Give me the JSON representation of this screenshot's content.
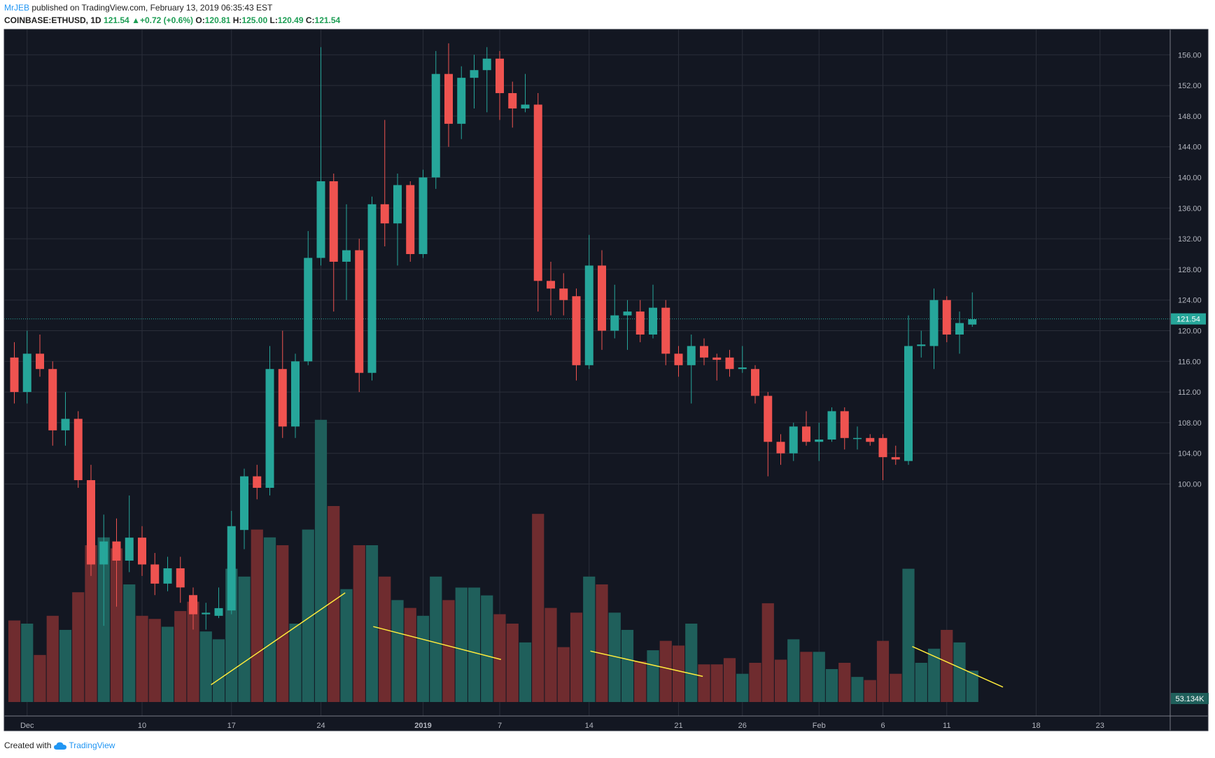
{
  "header": {
    "author": "MrJEB",
    "published_text": "published on TradingView.com, February 13, 2019 06:35:43 EST",
    "symbol": "COINBASE:ETHUSD",
    "interval": "1D",
    "last": "121.54",
    "change": "+0.72 (+0.6%)",
    "o_label": "O:",
    "o_val": "120.81",
    "h_label": "H:",
    "h_val": "125.00",
    "l_label": "L:",
    "l_val": "120.49",
    "c_label": "C:",
    "c_val": "121.54"
  },
  "footer": {
    "created_with": "Created with",
    "brand": "TradingView"
  },
  "colors": {
    "up": "#26a69a",
    "down": "#ef5350",
    "up_volume": "#1f5f5b",
    "down_volume": "#6f2c2f",
    "background": "#131722",
    "grid": "#2a2e39",
    "trendline": "#ffeb3b"
  },
  "chart_data": {
    "type": "candlestick",
    "price_axis": {
      "min": 100,
      "max": 156,
      "ticks": [
        100,
        104,
        108,
        112,
        116,
        120,
        124,
        128,
        132,
        136,
        140,
        144,
        148,
        152,
        156
      ]
    },
    "price_tick_labels": [
      "100.00",
      "104.00",
      "108.00",
      "112.00",
      "116.00",
      "120.00",
      "124.00",
      "128.00",
      "132.00",
      "136.00",
      "140.00",
      "144.00",
      "148.00",
      "152.00",
      "156.00"
    ],
    "current_price_label": "121.54",
    "current_price": 121.54,
    "volume_label": "53.134K",
    "x_labels": [
      {
        "day": 1,
        "text": "Dec"
      },
      {
        "day": 10,
        "text": "10"
      },
      {
        "day": 17,
        "text": "17"
      },
      {
        "day": 24,
        "text": "24"
      },
      {
        "day": 32,
        "text": "2019"
      },
      {
        "day": 38,
        "text": "7"
      },
      {
        "day": 45,
        "text": "14"
      },
      {
        "day": 52,
        "text": "21"
      },
      {
        "day": 57,
        "text": "26"
      },
      {
        "day": 63,
        "text": "Feb"
      },
      {
        "day": 68,
        "text": "6"
      },
      {
        "day": 73,
        "text": "11"
      },
      {
        "day": 80,
        "text": "18"
      },
      {
        "day": 85,
        "text": "23"
      }
    ],
    "candles": [
      {
        "d": 0,
        "o": 116.5,
        "h": 118.5,
        "l": 110.5,
        "c": 112.0,
        "v": 0.52
      },
      {
        "d": 1,
        "o": 112.0,
        "h": 120.0,
        "l": 110.5,
        "c": 117.0,
        "v": 0.5
      },
      {
        "d": 2,
        "o": 117.0,
        "h": 119.5,
        "l": 114.0,
        "c": 115.0,
        "v": 0.3
      },
      {
        "d": 3,
        "o": 115.0,
        "h": 116.0,
        "l": 105.0,
        "c": 107.0,
        "v": 0.55
      },
      {
        "d": 4,
        "o": 107.0,
        "h": 112.0,
        "l": 105.0,
        "c": 108.5,
        "v": 0.46
      },
      {
        "d": 5,
        "o": 108.5,
        "h": 109.5,
        "l": 99.5,
        "c": 100.5,
        "v": 0.7
      },
      {
        "d": 6,
        "o": 100.5,
        "h": 102.5,
        "l": 88.0,
        "c": 89.5,
        "v": 1.0
      },
      {
        "d": 7,
        "o": 89.5,
        "h": 96.0,
        "l": 81.5,
        "c": 92.5,
        "v": 1.05
      },
      {
        "d": 8,
        "o": 92.5,
        "h": 95.5,
        "l": 84.0,
        "c": 90.0,
        "v": 0.98
      },
      {
        "d": 9,
        "o": 90.0,
        "h": 98.5,
        "l": 88.5,
        "c": 93.0,
        "v": 0.75
      },
      {
        "d": 10,
        "o": 93.0,
        "h": 94.5,
        "l": 88.0,
        "c": 89.5,
        "v": 0.55
      },
      {
        "d": 11,
        "o": 89.5,
        "h": 91.0,
        "l": 85.5,
        "c": 87.0,
        "v": 0.53
      },
      {
        "d": 12,
        "o": 87.0,
        "h": 90.5,
        "l": 86.0,
        "c": 89.0,
        "v": 0.48
      },
      {
        "d": 13,
        "o": 89.0,
        "h": 90.5,
        "l": 84.5,
        "c": 86.5,
        "v": 0.58
      },
      {
        "d": 14,
        "o": 85.5,
        "h": 86.5,
        "l": 81.0,
        "c": 83.0,
        "v": 0.64
      },
      {
        "d": 15,
        "o": 83.0,
        "h": 84.5,
        "l": 81.0,
        "c": 83.2,
        "v": 0.45
      },
      {
        "d": 16,
        "o": 82.8,
        "h": 86.5,
        "l": 82.5,
        "c": 83.8,
        "v": 0.4
      },
      {
        "d": 17,
        "o": 83.5,
        "h": 96.5,
        "l": 83.0,
        "c": 94.5,
        "v": 0.85
      },
      {
        "d": 18,
        "o": 94.0,
        "h": 102.0,
        "l": 91.5,
        "c": 101.0,
        "v": 0.8
      },
      {
        "d": 19,
        "o": 101.0,
        "h": 102.5,
        "l": 98.0,
        "c": 99.5,
        "v": 1.1
      },
      {
        "d": 20,
        "o": 99.5,
        "h": 118.0,
        "l": 98.5,
        "c": 115.0,
        "v": 1.05
      },
      {
        "d": 21,
        "o": 115.0,
        "h": 120.0,
        "l": 106.0,
        "c": 107.5,
        "v": 1.0
      },
      {
        "d": 22,
        "o": 107.5,
        "h": 117.0,
        "l": 106.0,
        "c": 116.0,
        "v": 0.5
      },
      {
        "d": 23,
        "o": 116.0,
        "h": 133.0,
        "l": 115.5,
        "c": 129.5,
        "v": 1.1
      },
      {
        "d": 24,
        "o": 129.5,
        "h": 157.0,
        "l": 128.5,
        "c": 139.5,
        "v": 1.8
      },
      {
        "d": 25,
        "o": 139.5,
        "h": 140.5,
        "l": 122.5,
        "c": 129.0,
        "v": 1.25
      },
      {
        "d": 26,
        "o": 129.0,
        "h": 136.5,
        "l": 124.0,
        "c": 130.5,
        "v": 0.72
      },
      {
        "d": 27,
        "o": 130.5,
        "h": 132.0,
        "l": 112.0,
        "c": 114.5,
        "v": 1.0
      },
      {
        "d": 28,
        "o": 114.5,
        "h": 137.5,
        "l": 113.5,
        "c": 136.5,
        "v": 1.0
      },
      {
        "d": 29,
        "o": 136.5,
        "h": 147.5,
        "l": 131.0,
        "c": 134.0,
        "v": 0.8
      },
      {
        "d": 30,
        "o": 134.0,
        "h": 140.5,
        "l": 128.5,
        "c": 139.0,
        "v": 0.65
      },
      {
        "d": 31,
        "o": 139.0,
        "h": 139.5,
        "l": 129.0,
        "c": 130.0,
        "v": 0.6
      },
      {
        "d": 32,
        "o": 130.0,
        "h": 141.0,
        "l": 129.5,
        "c": 140.0,
        "v": 0.55
      },
      {
        "d": 33,
        "o": 140.0,
        "h": 156.5,
        "l": 138.5,
        "c": 153.5,
        "v": 0.8
      },
      {
        "d": 34,
        "o": 153.5,
        "h": 157.5,
        "l": 144.0,
        "c": 147.0,
        "v": 0.65
      },
      {
        "d": 35,
        "o": 147.0,
        "h": 154.5,
        "l": 145.0,
        "c": 153.0,
        "v": 0.73
      },
      {
        "d": 36,
        "o": 153.0,
        "h": 156.0,
        "l": 149.0,
        "c": 154.0,
        "v": 0.73
      },
      {
        "d": 37,
        "o": 154.0,
        "h": 157.0,
        "l": 148.5,
        "c": 155.5,
        "v": 0.68
      },
      {
        "d": 38,
        "o": 155.5,
        "h": 156.5,
        "l": 147.5,
        "c": 151.0,
        "v": 0.56
      },
      {
        "d": 39,
        "o": 151.0,
        "h": 152.5,
        "l": 146.5,
        "c": 149.0,
        "v": 0.5
      },
      {
        "d": 40,
        "o": 149.0,
        "h": 153.5,
        "l": 148.5,
        "c": 149.5,
        "v": 0.38
      },
      {
        "d": 41,
        "o": 149.5,
        "h": 151.0,
        "l": 122.5,
        "c": 126.5,
        "v": 1.2
      },
      {
        "d": 42,
        "o": 126.5,
        "h": 129.0,
        "l": 122.0,
        "c": 125.5,
        "v": 0.6
      },
      {
        "d": 43,
        "o": 125.5,
        "h": 127.5,
        "l": 122.0,
        "c": 124.0,
        "v": 0.35
      },
      {
        "d": 44,
        "o": 124.5,
        "h": 125.5,
        "l": 113.5,
        "c": 115.5,
        "v": 0.57
      },
      {
        "d": 45,
        "o": 115.5,
        "h": 132.5,
        "l": 115.0,
        "c": 128.5,
        "v": 0.8
      },
      {
        "d": 46,
        "o": 128.5,
        "h": 130.5,
        "l": 117.5,
        "c": 120.0,
        "v": 0.75
      },
      {
        "d": 47,
        "o": 120.0,
        "h": 126.0,
        "l": 119.0,
        "c": 122.0,
        "v": 0.57
      },
      {
        "d": 48,
        "o": 122.0,
        "h": 124.0,
        "l": 117.5,
        "c": 122.5,
        "v": 0.46
      },
      {
        "d": 49,
        "o": 122.5,
        "h": 124.0,
        "l": 118.5,
        "c": 119.5,
        "v": 0.26
      },
      {
        "d": 50,
        "o": 119.5,
        "h": 126.0,
        "l": 119.0,
        "c": 123.0,
        "v": 0.33
      },
      {
        "d": 51,
        "o": 123.0,
        "h": 124.0,
        "l": 115.5,
        "c": 117.0,
        "v": 0.39
      },
      {
        "d": 52,
        "o": 117.0,
        "h": 118.0,
        "l": 114.0,
        "c": 115.5,
        "v": 0.36
      },
      {
        "d": 53,
        "o": 115.5,
        "h": 119.5,
        "l": 110.5,
        "c": 118.0,
        "v": 0.5
      },
      {
        "d": 54,
        "o": 118.0,
        "h": 119.0,
        "l": 115.5,
        "c": 116.5,
        "v": 0.24
      },
      {
        "d": 55,
        "o": 116.5,
        "h": 117.0,
        "l": 113.5,
        "c": 116.2,
        "v": 0.24
      },
      {
        "d": 56,
        "o": 116.5,
        "h": 117.5,
        "l": 114.0,
        "c": 115.0,
        "v": 0.28
      },
      {
        "d": 57,
        "o": 115.0,
        "h": 118.0,
        "l": 114.5,
        "c": 115.2,
        "v": 0.18
      },
      {
        "d": 58,
        "o": 115.0,
        "h": 115.5,
        "l": 110.5,
        "c": 111.5,
        "v": 0.25
      },
      {
        "d": 59,
        "o": 111.5,
        "h": 112.0,
        "l": 101.0,
        "c": 105.5,
        "v": 0.63
      },
      {
        "d": 60,
        "o": 105.5,
        "h": 106.5,
        "l": 102.5,
        "c": 104.0,
        "v": 0.27
      },
      {
        "d": 61,
        "o": 104.0,
        "h": 108.0,
        "l": 103.0,
        "c": 107.5,
        "v": 0.4
      },
      {
        "d": 62,
        "o": 107.5,
        "h": 109.5,
        "l": 105.0,
        "c": 105.5,
        "v": 0.32
      },
      {
        "d": 63,
        "o": 105.5,
        "h": 108.0,
        "l": 103.0,
        "c": 105.8,
        "v": 0.32
      },
      {
        "d": 64,
        "o": 105.8,
        "h": 110.0,
        "l": 105.5,
        "c": 109.5,
        "v": 0.21
      },
      {
        "d": 65,
        "o": 109.5,
        "h": 110.0,
        "l": 104.5,
        "c": 106.0,
        "v": 0.25
      },
      {
        "d": 66,
        "o": 106.0,
        "h": 107.5,
        "l": 104.5,
        "c": 106.0,
        "v": 0.16
      },
      {
        "d": 67,
        "o": 106.0,
        "h": 106.5,
        "l": 105.0,
        "c": 105.5,
        "v": 0.14
      },
      {
        "d": 68,
        "o": 106.0,
        "h": 106.5,
        "l": 100.5,
        "c": 103.5,
        "v": 0.39
      },
      {
        "d": 69,
        "o": 103.5,
        "h": 105.0,
        "l": 102.5,
        "c": 103.2,
        "v": 0.18
      },
      {
        "d": 70,
        "o": 103.0,
        "h": 122.0,
        "l": 102.5,
        "c": 118.0,
        "v": 0.85
      },
      {
        "d": 71,
        "o": 118.0,
        "h": 120.0,
        "l": 116.5,
        "c": 118.2,
        "v": 0.25
      },
      {
        "d": 72,
        "o": 118.0,
        "h": 125.5,
        "l": 115.0,
        "c": 124.0,
        "v": 0.34
      },
      {
        "d": 73,
        "o": 124.0,
        "h": 124.5,
        "l": 118.5,
        "c": 119.5,
        "v": 0.46
      },
      {
        "d": 74,
        "o": 119.5,
        "h": 122.5,
        "l": 117.0,
        "c": 121.0,
        "v": 0.38
      },
      {
        "d": 75,
        "o": 120.8,
        "h": 125.0,
        "l": 120.5,
        "c": 121.5,
        "v": 0.2
      }
    ],
    "trendlines": [
      {
        "d1": 15.4,
        "p1": 73.8,
        "d2": 25.9,
        "p2": 85.8
      },
      {
        "d1": 28.1,
        "p1": 81.4,
        "d2": 38.1,
        "p2": 77.1
      },
      {
        "d1": 45.1,
        "p1": 78.2,
        "d2": 53.9,
        "p2": 74.9
      },
      {
        "d1": 70.3,
        "p1": 78.8,
        "d2": 77.4,
        "p2": 73.5
      }
    ]
  }
}
